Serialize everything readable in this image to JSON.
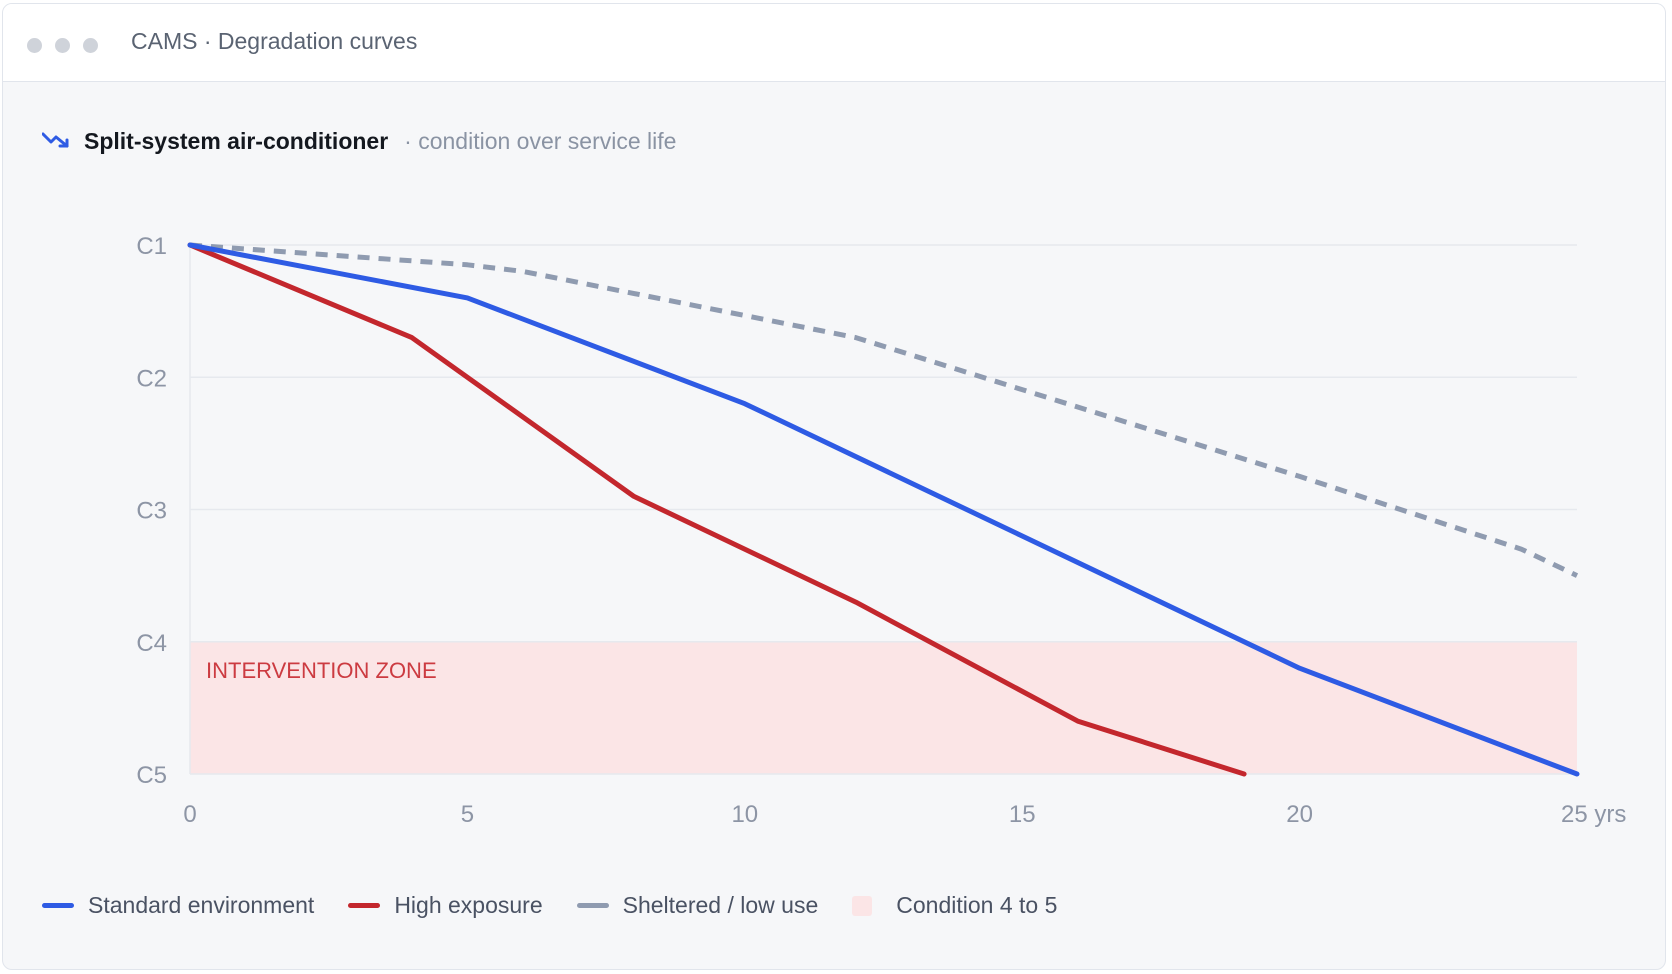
{
  "window": {
    "title": "CAMS · Degradation curves"
  },
  "header": {
    "title": "Split-system air-conditioner",
    "subtitle": "· condition over service life"
  },
  "chart_data": {
    "type": "line",
    "title": "Split-system air-conditioner",
    "subtitle": "· condition over service life",
    "xlabel": "",
    "ylabel": "",
    "xlim": [
      0,
      25
    ],
    "ylim": [
      1,
      5
    ],
    "y_inverted": true,
    "x_ticks": [
      0,
      5,
      10,
      15,
      20,
      25
    ],
    "x_tick_labels": [
      "0",
      "5",
      "10",
      "15",
      "20",
      "25 yrs"
    ],
    "y_ticks": [
      1,
      2,
      3,
      4,
      5
    ],
    "y_tick_labels": [
      "C1",
      "C2",
      "C3",
      "C4",
      "C5"
    ],
    "grid": true,
    "legend_position": "bottom",
    "zone": {
      "label": "INTERVENTION ZONE",
      "y_from": 4,
      "y_to": 5,
      "legend": "Condition 4 to 5",
      "color": "#fbe5e6",
      "text_color": "#cc3b41"
    },
    "series": [
      {
        "name": "Standard environment",
        "color": "#2e5be4",
        "dashed": false,
        "x": [
          0,
          5,
          10,
          15,
          20,
          25
        ],
        "y": [
          1,
          1.4,
          2.2,
          3.2,
          4.2,
          5
        ]
      },
      {
        "name": "High exposure",
        "color": "#c3272d",
        "dashed": false,
        "x": [
          0,
          4,
          8,
          12,
          16,
          19
        ],
        "y": [
          1,
          1.7,
          2.9,
          3.7,
          4.6,
          5
        ]
      },
      {
        "name": "Sheltered / low use",
        "color": "#8f9bb0",
        "dashed": true,
        "x": [
          0,
          5,
          6,
          12,
          20,
          24,
          25
        ],
        "y": [
          1,
          1.15,
          1.2,
          1.7,
          2.75,
          3.3,
          3.5
        ]
      }
    ]
  },
  "colors": {
    "grid": "#e6e9ee",
    "axis_text": "#8d95a5",
    "background": "#f6f7f9"
  },
  "icons": {
    "header_icon": "trend-down-icon"
  }
}
